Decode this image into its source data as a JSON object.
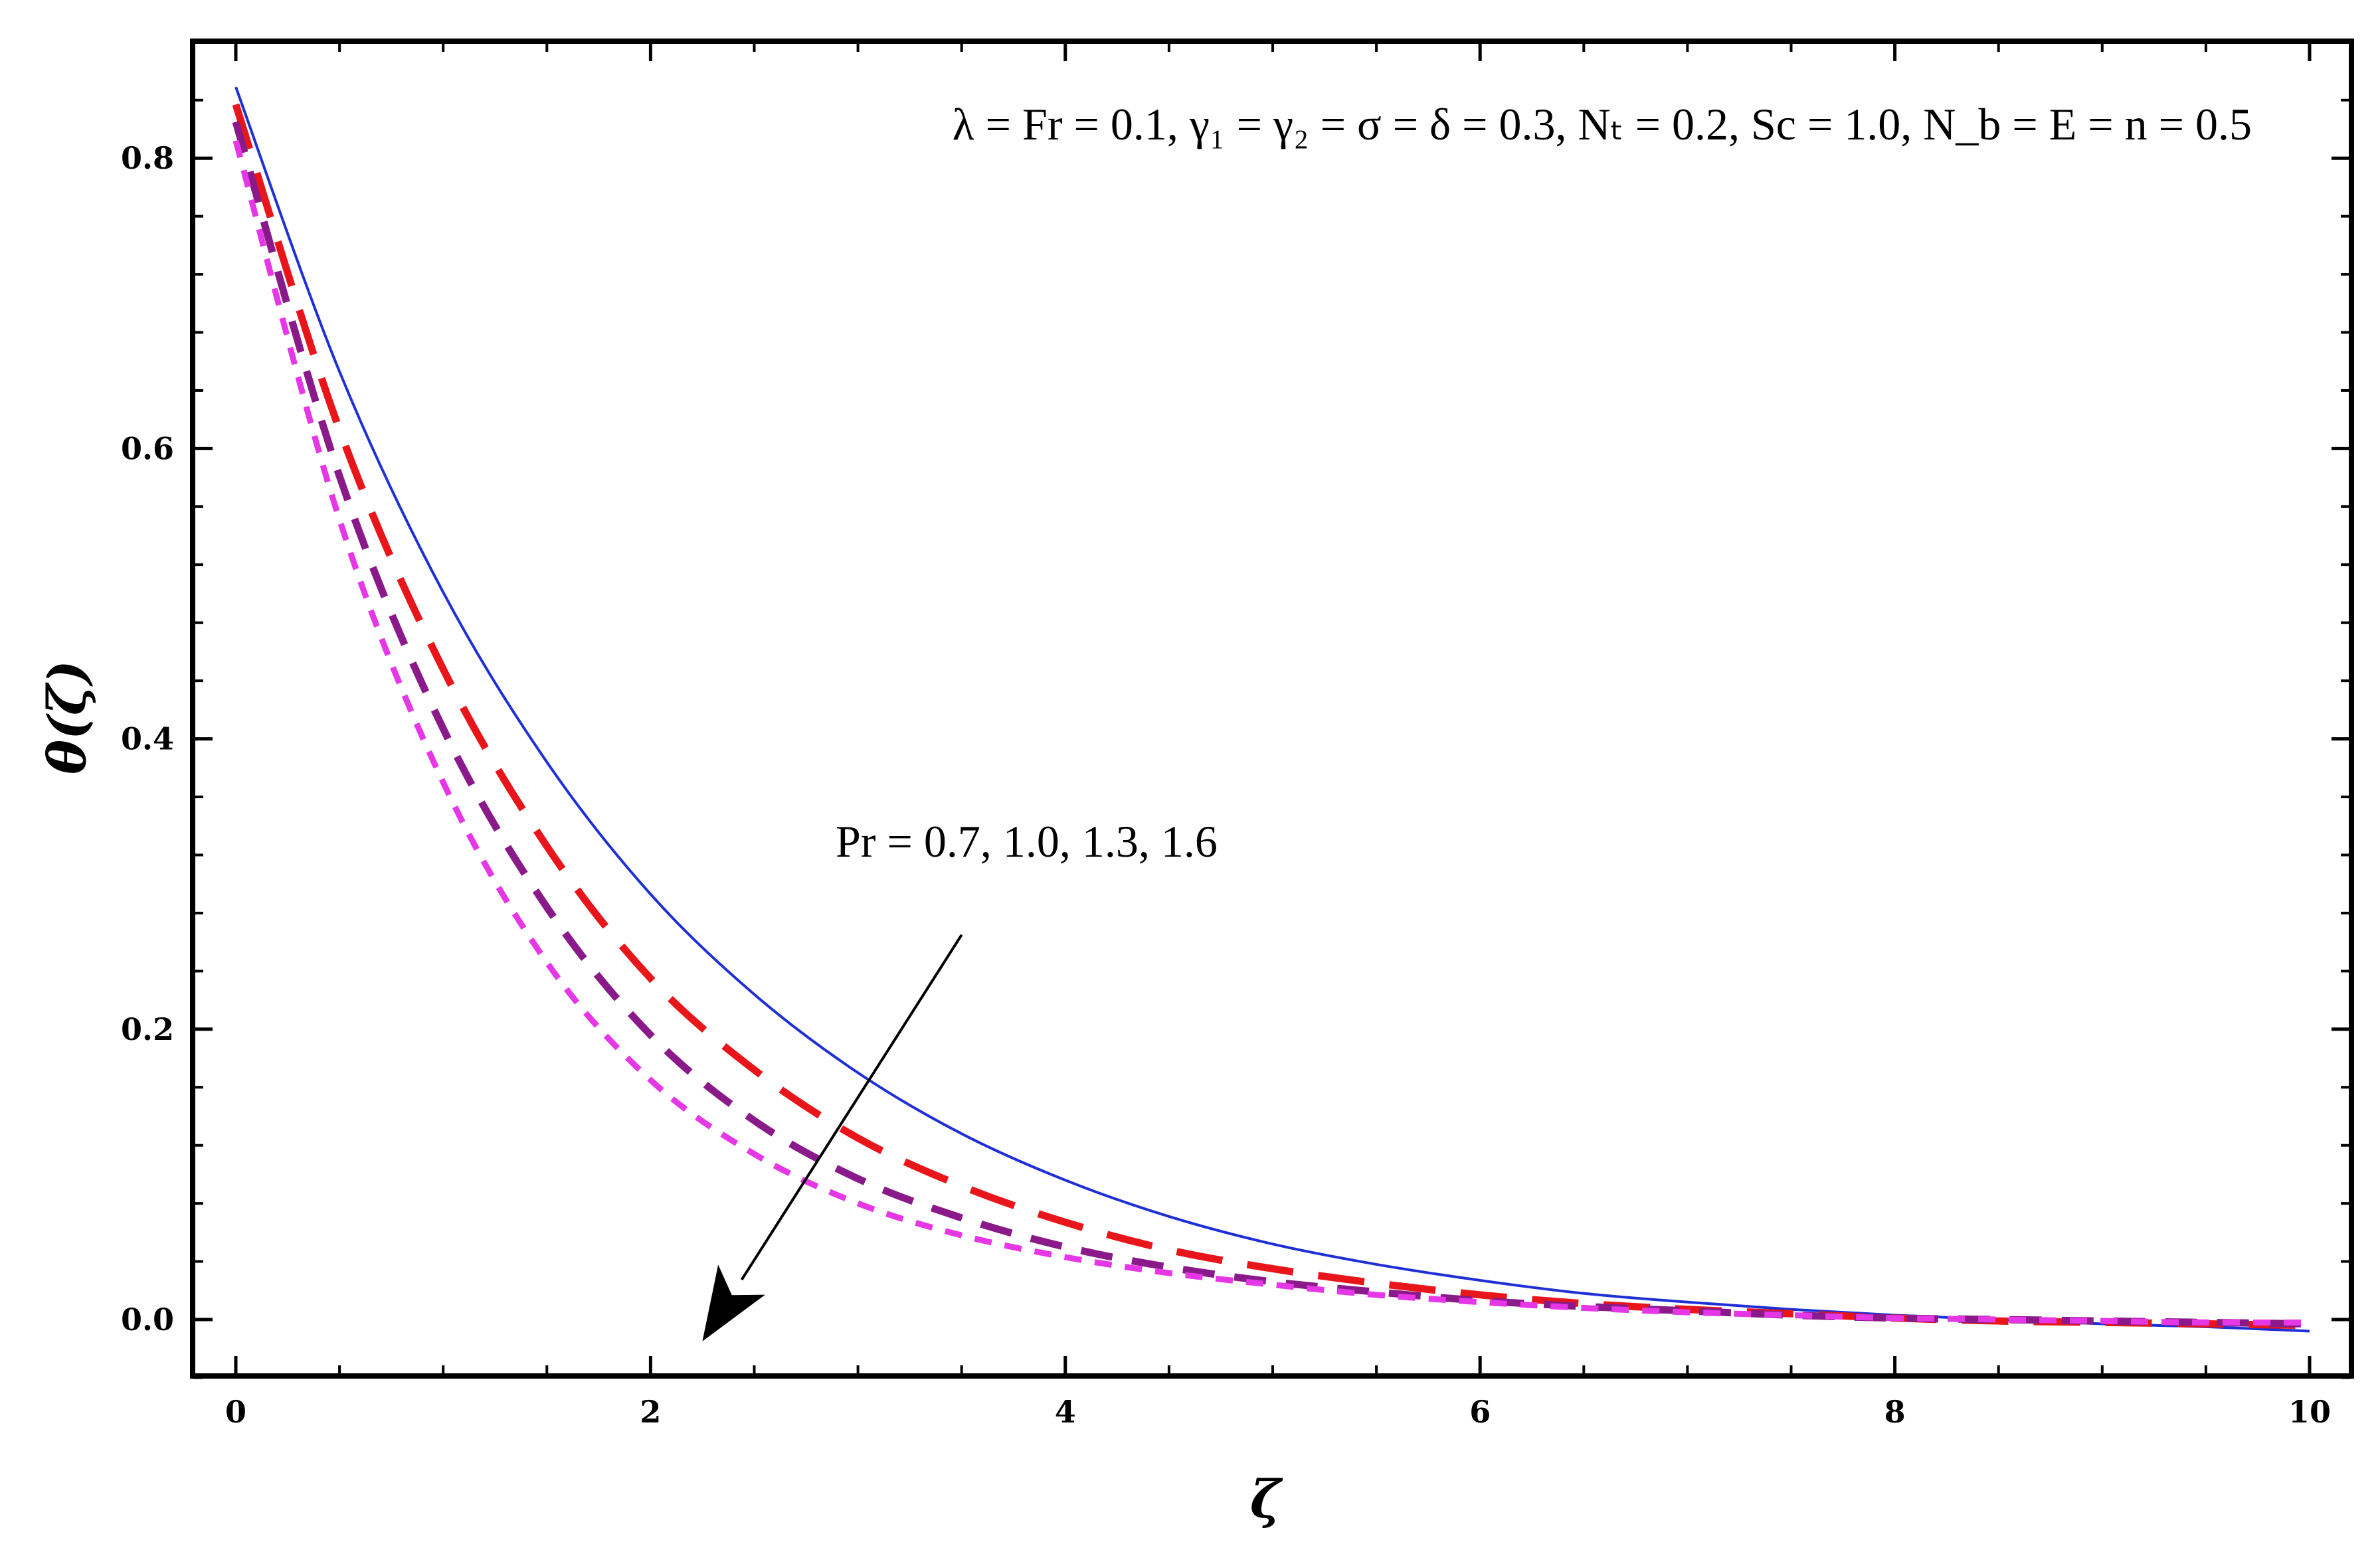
{
  "chart_data": {
    "type": "line",
    "title": "",
    "xlabel": "ζ",
    "ylabel": "θ(ζ)",
    "xlim": [
      0,
      10
    ],
    "ylim": [
      -0.04,
      0.87
    ],
    "x_ticks": [
      "0",
      "2",
      "4",
      "6",
      "8",
      "10"
    ],
    "y_ticks": [
      "0.0",
      "0.2",
      "0.4",
      "0.6",
      "0.8"
    ],
    "grid": false,
    "parameter_text": "λ = Fr = 0.1, γ₁ = γ₂ = σ = δ = 0.3, Nₜ = 0.2, Sc = 1.0, N_b = E = n = 0.5",
    "annotation": "Pr = 0.7, 1.0, 1.3, 1.6",
    "x": [
      0,
      0.5,
      1,
      1.5,
      2,
      2.5,
      3,
      3.5,
      4,
      4.5,
      5,
      5.5,
      6,
      6.5,
      7,
      7.5,
      8,
      8.5,
      9,
      9.5,
      10
    ],
    "series": [
      {
        "color": "#1f2fd6",
        "dash": "solid",
        "values": [
          0.849,
          0.653,
          0.501,
          0.384,
          0.293,
          0.224,
          0.17,
          0.128,
          0.096,
          0.071,
          0.052,
          0.038,
          0.027,
          0.018,
          0.012,
          0.007,
          0.003,
          0.0,
          -0.003,
          -0.005,
          -0.008
        ]
      },
      {
        "color": "#e8161a",
        "dash": "long",
        "values": [
          0.837,
          0.613,
          0.448,
          0.326,
          0.235,
          0.172,
          0.125,
          0.092,
          0.067,
          0.048,
          0.035,
          0.025,
          0.017,
          0.011,
          0.007,
          0.004,
          0.001,
          -0.001,
          -0.002,
          -0.003,
          -0.004
        ]
      },
      {
        "color": "#8a1a8a",
        "dash": "medium",
        "values": [
          0.825,
          0.581,
          0.407,
          0.284,
          0.196,
          0.137,
          0.097,
          0.07,
          0.05,
          0.036,
          0.026,
          0.019,
          0.013,
          0.009,
          0.006,
          0.003,
          0.001,
          0.0,
          -0.001,
          -0.002,
          -0.003
        ]
      },
      {
        "color": "#e637e6",
        "dash": "short",
        "values": [
          0.812,
          0.551,
          0.37,
          0.246,
          0.165,
          0.114,
          0.08,
          0.058,
          0.043,
          0.032,
          0.024,
          0.017,
          0.012,
          0.008,
          0.005,
          0.003,
          0.001,
          0.0,
          -0.001,
          -0.002,
          -0.002
        ]
      }
    ],
    "arrow": {
      "from": [
        3.5,
        0.265
      ],
      "to": [
        2.25,
        -0.015
      ]
    }
  }
}
